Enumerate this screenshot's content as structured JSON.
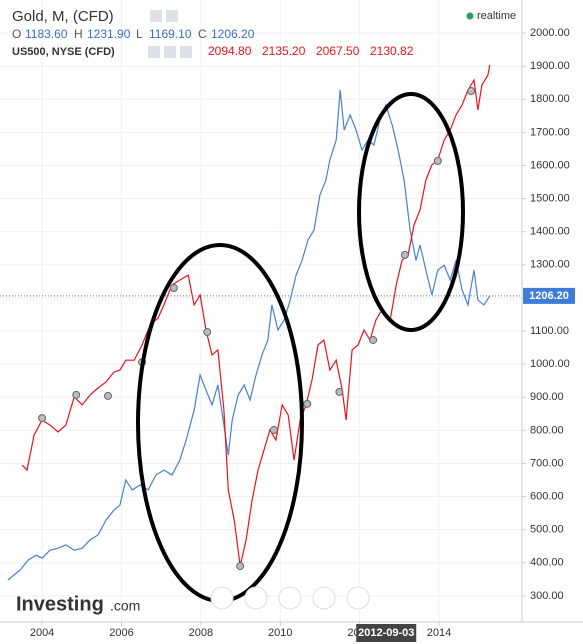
{
  "chart_data": {
    "type": "line",
    "series": [
      {
        "name": "Gold, M, (CFD)",
        "color": "#4a7fd0",
        "x": [
          2003.14,
          2003.29,
          2003.45,
          2003.65,
          2003.85,
          2004.0,
          2004.2,
          2004.4,
          2004.6,
          2004.81,
          2005.01,
          2005.21,
          2005.41,
          2005.61,
          2005.81,
          2005.96,
          2006.11,
          2006.27,
          2006.47,
          2006.67,
          2006.87,
          2007.07,
          2007.27,
          2007.47,
          2007.63,
          2007.83,
          2007.98,
          2008.13,
          2008.28,
          2008.43,
          2008.58,
          2008.69,
          2008.79,
          2008.94,
          2009.09,
          2009.24,
          2009.39,
          2009.54,
          2009.69,
          2009.79,
          2009.94,
          2010.1,
          2010.25,
          2010.4,
          2010.55,
          2010.7,
          2010.85,
          2011.0,
          2011.15,
          2011.25,
          2011.41,
          2011.51,
          2011.61,
          2011.76,
          2011.91,
          2012.06,
          2012.21,
          2012.36,
          2012.51,
          2012.66,
          2012.82,
          2012.97,
          2013.12,
          2013.27,
          2013.42,
          2013.52,
          2013.67,
          2013.82,
          2013.97,
          2014.13,
          2014.28,
          2014.43,
          2014.58,
          2014.73,
          2014.88,
          2014.98,
          2015.13,
          2015.28
        ],
        "values": [
          348,
          363,
          378,
          408,
          423,
          414,
          438,
          444,
          454,
          438,
          444,
          469,
          484,
          529,
          559,
          574,
          650,
          620,
          635,
          620,
          665,
          680,
          665,
          710,
          771,
          861,
          967,
          922,
          877,
          937,
          816,
          725,
          831,
          907,
          937,
          892,
          967,
          1028,
          1073,
          1179,
          1103,
          1133,
          1194,
          1269,
          1314,
          1375,
          1405,
          1511,
          1556,
          1617,
          1677,
          1828,
          1707,
          1753,
          1707,
          1647,
          1677,
          1662,
          1737,
          1783,
          1722,
          1647,
          1556,
          1405,
          1314,
          1360,
          1284,
          1209,
          1284,
          1299,
          1254,
          1314,
          1224,
          1179,
          1284,
          1194,
          1179,
          1206
        ]
      },
      {
        "name": "US500, NYSE (CFD)",
        "color": "#e8141b",
        "x": [
          2003.5,
          2003.62,
          2003.8,
          2004.0,
          2004.2,
          2004.4,
          2004.6,
          2004.81,
          2005.01,
          2005.21,
          2005.41,
          2005.61,
          2005.81,
          2005.96,
          2006.11,
          2006.32,
          2006.52,
          2006.72,
          2006.92,
          2007.07,
          2007.27,
          2007.47,
          2007.68,
          2007.83,
          2007.98,
          2008.13,
          2008.28,
          2008.43,
          2008.58,
          2008.69,
          2008.84,
          2008.99,
          2009.14,
          2009.29,
          2009.44,
          2009.59,
          2009.74,
          2009.89,
          2010.05,
          2010.2,
          2010.35,
          2010.5,
          2010.65,
          2010.8,
          2010.95,
          2011.1,
          2011.25,
          2011.41,
          2011.56,
          2011.66,
          2011.81,
          2011.96,
          2012.11,
          2012.26,
          2012.41,
          2012.56,
          2012.77,
          2012.92,
          2013.07,
          2013.22,
          2013.37,
          2013.52,
          2013.67,
          2013.82,
          2013.97,
          2014.13,
          2014.28,
          2014.43,
          2014.58,
          2014.73,
          2014.88,
          2014.98,
          2015.08,
          2015.23,
          2015.28
        ],
        "values": [
          695,
          680,
          786,
          831,
          816,
          795,
          816,
          901,
          877,
          907,
          928,
          946,
          976,
          982,
          1012,
          1012,
          1058,
          1118,
          1139,
          1179,
          1239,
          1254,
          1269,
          1179,
          1209,
          1103,
          1028,
          1043,
          861,
          620,
          529,
          390,
          469,
          589,
          680,
          741,
          801,
          771,
          877,
          846,
          710,
          831,
          877,
          952,
          1058,
          1073,
          982,
          1012,
          922,
          831,
          1043,
          1058,
          1103,
          1073,
          1133,
          1164,
          1133,
          1239,
          1314,
          1330,
          1420,
          1466,
          1556,
          1602,
          1617,
          1677,
          1707,
          1753,
          1783,
          1828,
          1858,
          1768,
          1843,
          1873,
          1904
        ]
      }
    ],
    "event_markers": {
      "x": [
        2004.0,
        2004.86,
        2005.66,
        2006.52,
        2007.32,
        2008.16,
        2008.99,
        2009.84,
        2010.68,
        2011.49,
        2012.34,
        2013.14,
        2013.97,
        2014.81
      ],
      "values": [
        837,
        907,
        904,
        1006,
        1230,
        1097,
        390,
        801,
        880,
        916,
        1073,
        1330,
        1614,
        1825
      ]
    },
    "xlim": [
      2002.94,
      2016.09
    ],
    "xticks": [
      2004,
      2006,
      2008,
      2010,
      2012,
      2014
    ],
    "ylim": [
      212,
      2100
    ],
    "yticks": [
      {
        "value": 300,
        "label": "300.00"
      },
      {
        "value": 400,
        "label": "400.00"
      },
      {
        "value": 500,
        "label": "500.00"
      },
      {
        "value": 600,
        "label": "600.00"
      },
      {
        "value": 700,
        "label": "700.00"
      },
      {
        "value": 800,
        "label": "800.00"
      },
      {
        "value": 900,
        "label": "900.00"
      },
      {
        "value": 1000,
        "label": "1000.00"
      },
      {
        "value": 1100,
        "label": "1100.00"
      },
      {
        "value": 1200,
        "label": "1200.00"
      },
      {
        "value": 1300,
        "label": "1300.00"
      },
      {
        "value": 1400,
        "label": "1400.00"
      },
      {
        "value": 1500,
        "label": "1500.00"
      },
      {
        "value": 1600,
        "label": "1600.00"
      },
      {
        "value": 1700,
        "label": "1700.00"
      },
      {
        "value": 1800,
        "label": "1800.00"
      },
      {
        "value": 1900,
        "label": "1900.00"
      },
      {
        "value": 2000,
        "label": "2000.00"
      }
    ],
    "grid": true,
    "current_price": {
      "value": 1206.2,
      "label": "1206.20",
      "color": "#3d7dd8"
    },
    "crosshair": {
      "x": 2012.67,
      "label": "2012-09-03"
    }
  },
  "header": {
    "gold_title": "Gold, M, (CFD)",
    "ohlc": [
      {
        "key": "O",
        "value": "1183.60"
      },
      {
        "key": "H",
        "value": "1231.90"
      },
      {
        "key": "L",
        "value": "1169.10"
      },
      {
        "key": "C",
        "value": "1206.20"
      }
    ],
    "us500_title": "US500, NYSE (CFD)",
    "us500_values": [
      "2094.80",
      "2135.20",
      "2067.50",
      "2130.82"
    ],
    "status": "realtime"
  },
  "logo": {
    "name": "Investing",
    "suffix": ".com"
  }
}
